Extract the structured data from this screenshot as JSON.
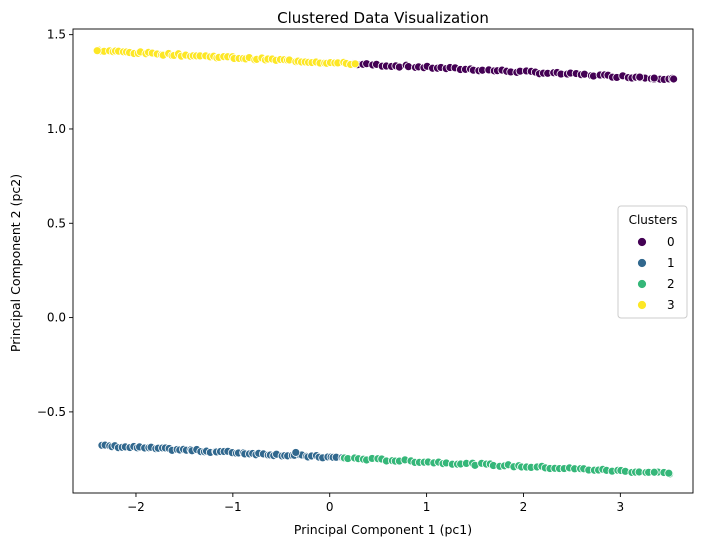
{
  "chart_data": {
    "type": "scatter",
    "title": "Clustered Data Visualization",
    "xlabel": "Principal Component 1 (pc1)",
    "ylabel": "Principal Component 2 (pc2)",
    "xlim": [
      -2.65,
      3.75
    ],
    "ylim": [
      -0.93,
      1.53
    ],
    "xticks": [
      -2,
      -1,
      0,
      1,
      2,
      3
    ],
    "xtick_labels": [
      "−2",
      "−1",
      "0",
      "1",
      "2",
      "3"
    ],
    "yticks": [
      -0.5,
      0.0,
      0.5,
      1.0,
      1.5
    ],
    "ytick_labels": [
      "−0.5",
      "0.0",
      "0.5",
      "1.0",
      "1.5"
    ],
    "grid": false,
    "legend": {
      "title": "Clusters",
      "placement": "center-right"
    },
    "series": [
      {
        "name": "0",
        "color": "#440154",
        "x_range": [
          0.25,
          3.55
        ],
        "y_range": [
          1.345,
          1.265
        ],
        "extra_points": [
          [
            3.2,
            1.275
          ],
          [
            3.35,
            1.27
          ],
          [
            3.55,
            1.265
          ]
        ]
      },
      {
        "name": "1",
        "color": "#31688e",
        "x_range": [
          -2.35,
          0.15
        ],
        "y_range": [
          -0.68,
          -0.745
        ],
        "extra_points": [
          [
            -0.35,
            -0.715
          ]
        ]
      },
      {
        "name": "2",
        "color": "#35b779",
        "x_range": [
          0.15,
          3.5
        ],
        "y_range": [
          -0.745,
          -0.825
        ],
        "extra_points": [
          [
            3.35,
            -0.82
          ],
          [
            3.5,
            -0.825
          ]
        ]
      },
      {
        "name": "3",
        "color": "#fde725",
        "x_range": [
          -2.4,
          0.25
        ],
        "y_range": [
          1.415,
          1.345
        ],
        "extra_points": [
          [
            -2.4,
            1.415
          ]
        ]
      }
    ]
  }
}
